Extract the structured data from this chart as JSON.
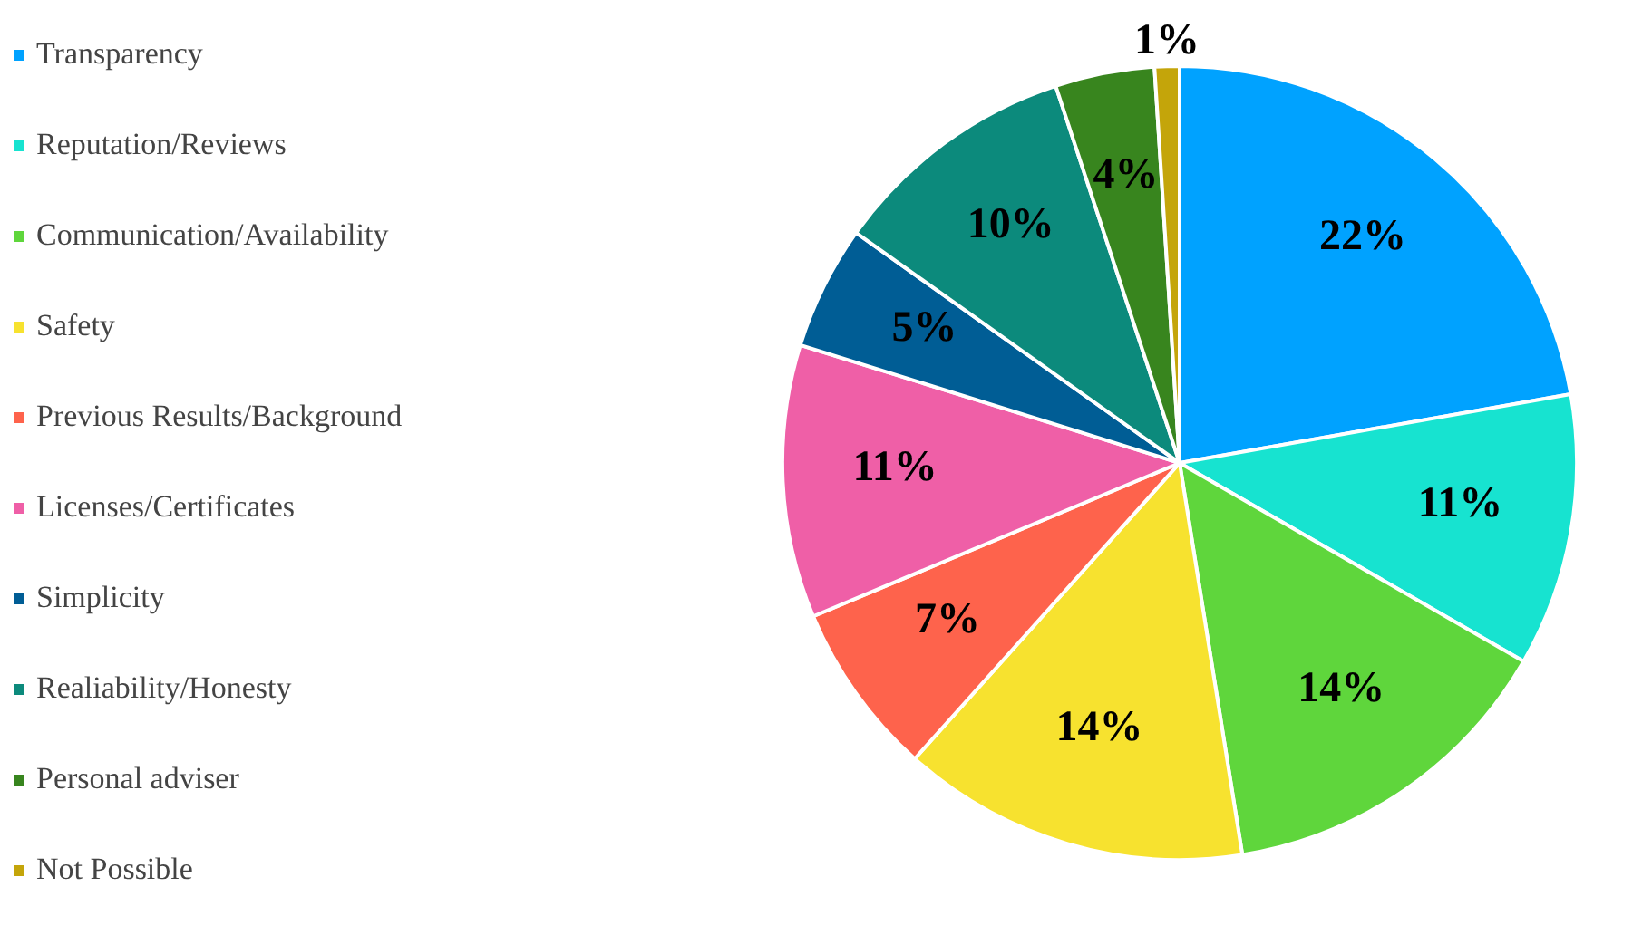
{
  "chart_data": {
    "type": "pie",
    "categories": [
      "Transparency",
      "Reputation/Reviews",
      "Communication/Availability",
      "Safety",
      "Previous Results/Background",
      "Licenses/Certificates",
      "Simplicity",
      "Realiability/Honesty",
      "Personal adviser",
      "Not Possible"
    ],
    "values": [
      22,
      11,
      14,
      14,
      7,
      11,
      5,
      10,
      4,
      1
    ],
    "value_labels": [
      "22%",
      "11%",
      "14%",
      "14%",
      "7%",
      "11%",
      "5%",
      "10%",
      "4%",
      "1%"
    ],
    "colors": [
      "#00a2ff",
      "#17e3d0",
      "#5fd63c",
      "#f7e22f",
      "#fe634c",
      "#ef5fa7",
      "#005d95",
      "#0c8a7c",
      "#38851e",
      "#c4a50a"
    ],
    "legend": "left"
  }
}
